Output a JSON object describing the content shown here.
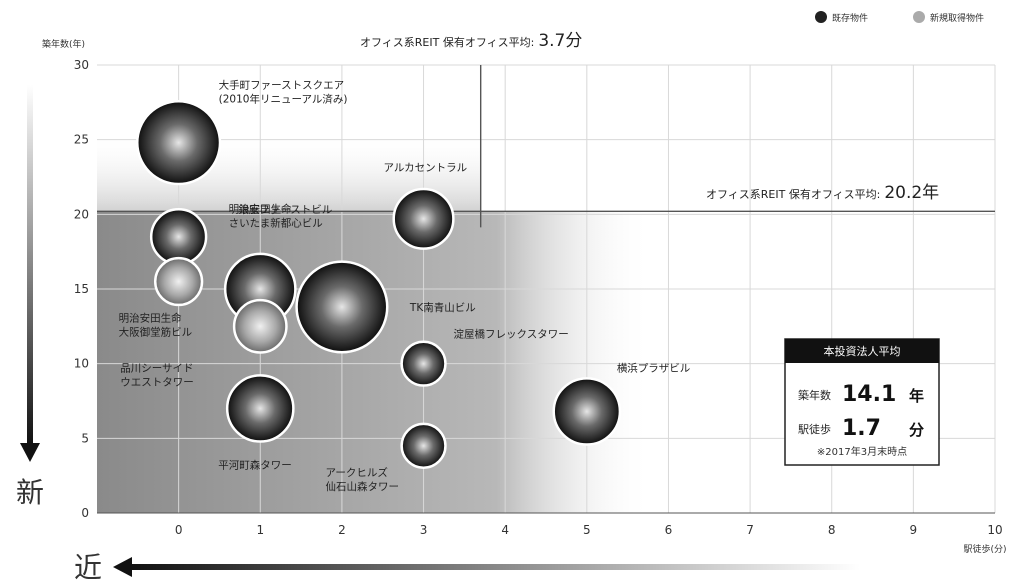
{
  "chart_data": {
    "type": "scatter",
    "variant": "bubble",
    "ylabel": "築年数(年)",
    "xlabel": "駅徒歩(分)",
    "xlim": [
      -1,
      10
    ],
    "ylim": [
      0,
      30
    ],
    "xticks": [
      "0",
      "1",
      "2",
      "3",
      "4",
      "5",
      "6",
      "7",
      "8",
      "9",
      "10"
    ],
    "yticks": [
      "0",
      "5",
      "10",
      "15",
      "20",
      "25",
      "30"
    ],
    "legend": {
      "placement": "top-right",
      "items": [
        {
          "label": "既存物件",
          "color": "#222222"
        },
        {
          "label": "新規取得物件",
          "color": "#aaaaaa"
        }
      ]
    },
    "reference_lines": {
      "x": {
        "value": 3.7,
        "label": "オフィス系REIT 保有オフィス平均:",
        "value_label": "3.7分"
      },
      "y": {
        "value": 20.2,
        "label": "オフィス系REIT 保有オフィス平均:",
        "value_label": "20.2年"
      }
    },
    "series": [
      {
        "name": "既存物件",
        "points": [
          {
            "label": [
              "大手町ファーストスクエア",
              "(2010年リニューアル済み)"
            ],
            "x": 0,
            "y": 24.8,
            "size": 5
          },
          {
            "label": [
              "明治安田生命",
              "さいたま新都心ビル"
            ],
            "x": 0,
            "y": 18.5,
            "size": 2.2
          },
          {
            "label": [
              "銀座ファーストビル"
            ],
            "x": 1,
            "y": 15.0,
            "size": 3.6
          },
          {
            "label": [
              "TK南青山ビル"
            ],
            "x": 2,
            "y": 13.8,
            "size": 6
          },
          {
            "label": [
              "アルカセントラル"
            ],
            "x": 3,
            "y": 19.7,
            "size": 2.6
          },
          {
            "label": [
              "淀屋橋フレックスタワー"
            ],
            "x": 3,
            "y": 10.0,
            "size": 1.4
          },
          {
            "label": [
              "アークヒルズ",
              "仙石山森タワー"
            ],
            "x": 3,
            "y": 4.5,
            "size": 1.4
          },
          {
            "label": [
              "平河町森タワー"
            ],
            "x": 1,
            "y": 7.0,
            "size": 3.2
          },
          {
            "label": [
              "横浜プラザビル"
            ],
            "x": 5,
            "y": 6.8,
            "size": 3.2
          }
        ]
      },
      {
        "name": "新規取得物件",
        "points": [
          {
            "label": [
              "明治安田生命",
              "大阪御堂筋ビル"
            ],
            "x": 0,
            "y": 15.5,
            "size": 1.6
          },
          {
            "label": [
              "品川シーサイド",
              "ウエストタワー"
            ],
            "x": 1,
            "y": 12.5,
            "size": 2.0
          }
        ]
      }
    ],
    "summary_box": {
      "title": "本投資法人平均",
      "rows": [
        {
          "key": "築年数",
          "value": "14.1",
          "unit": "年"
        },
        {
          "key": "駅徒歩",
          "value": "1.7",
          "unit": "分"
        }
      ],
      "note": "※2017年3月末時点"
    },
    "side_labels": {
      "vertical": "新",
      "horizontal": "近"
    }
  }
}
